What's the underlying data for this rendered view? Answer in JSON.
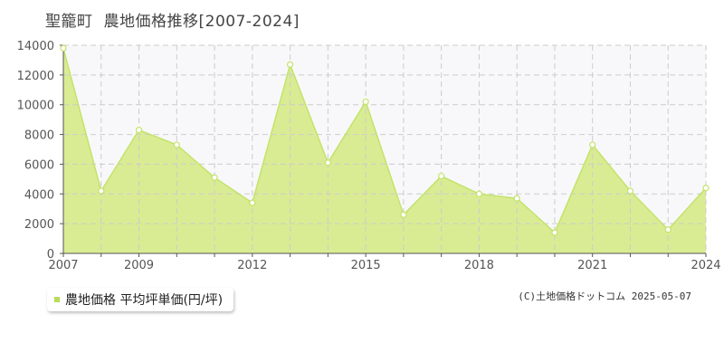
{
  "title": {
    "place": "聖籠町",
    "main": "農地価格推移[2007-2024]"
  },
  "legend": {
    "label": "農地価格 平均坪単価(円/坪)",
    "color": "#b8dc5a"
  },
  "copyright": "(C)土地価格ドットコム 2025-05-07",
  "colors": {
    "fill": "#d9ec93",
    "line": "#c3e36b",
    "plot_upper_bg": "#f8f8fa",
    "grid": "#cccccc",
    "axis": "#555555"
  },
  "chart_data": {
    "type": "area",
    "x": [
      2007,
      2008,
      2009,
      2010,
      2011,
      2012,
      2013,
      2014,
      2015,
      2016,
      2017,
      2018,
      2019,
      2020,
      2021,
      2022,
      2023,
      2024
    ],
    "series": [
      {
        "name": "農地価格 平均坪単価(円/坪)",
        "values": [
          13800,
          4200,
          8300,
          7300,
          5100,
          3400,
          12700,
          6100,
          10200,
          2600,
          5200,
          4000,
          3700,
          1400,
          7300,
          4200,
          1600,
          4400
        ]
      }
    ],
    "x_tick_labels": [
      "2007",
      "2009",
      "2012",
      "2015",
      "2018",
      "2021",
      "2024"
    ],
    "y_tick_labels": [
      "0",
      "2000",
      "4000",
      "6000",
      "8000",
      "10000",
      "12000",
      "14000"
    ],
    "ylim": [
      0,
      14000
    ],
    "xlim": [
      2007,
      2024
    ],
    "grid": true,
    "legend_position": "bottom-left"
  }
}
